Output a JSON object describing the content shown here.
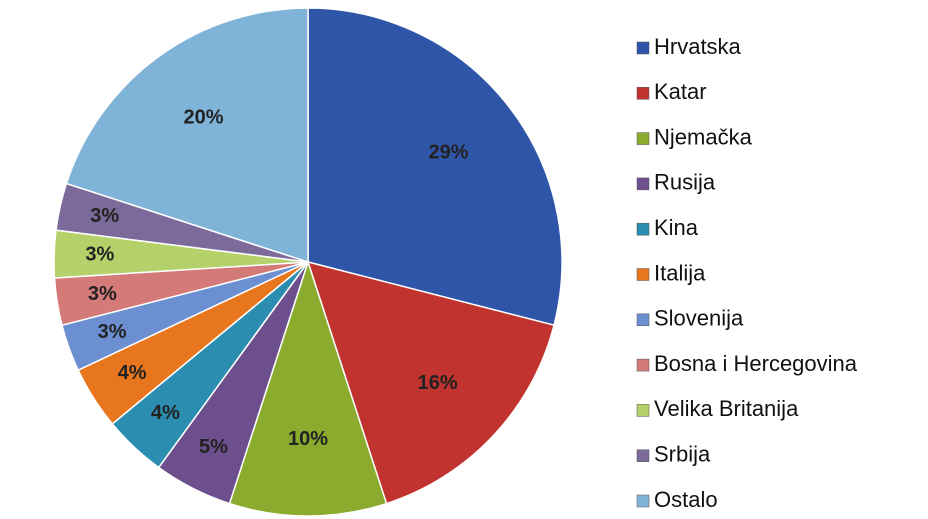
{
  "chart_data": {
    "type": "pie",
    "categories": [
      "Hrvatska",
      "Katar",
      "Njemačka",
      "Rusija",
      "Kina",
      "Italija",
      "Slovenija",
      "Bosna i Hercegovina",
      "Velika Britanija",
      "Srbija",
      "Ostalo"
    ],
    "values": [
      29,
      16,
      10,
      5,
      4,
      4,
      3,
      3,
      3,
      3,
      20
    ],
    "value_labels": [
      "29%",
      "16%",
      "10%",
      "5%",
      "4%",
      "4%",
      "3%",
      "3%",
      "3%",
      "3%",
      "20%"
    ],
    "colors": [
      "#2f55a8",
      "#c0332e",
      "#8aab2e",
      "#6d4f8e",
      "#2b8db0",
      "#e8761e",
      "#6b8fd0",
      "#d47a78",
      "#b5d16a",
      "#7b6a9a",
      "#7fb3d8"
    ],
    "legend": "right"
  }
}
